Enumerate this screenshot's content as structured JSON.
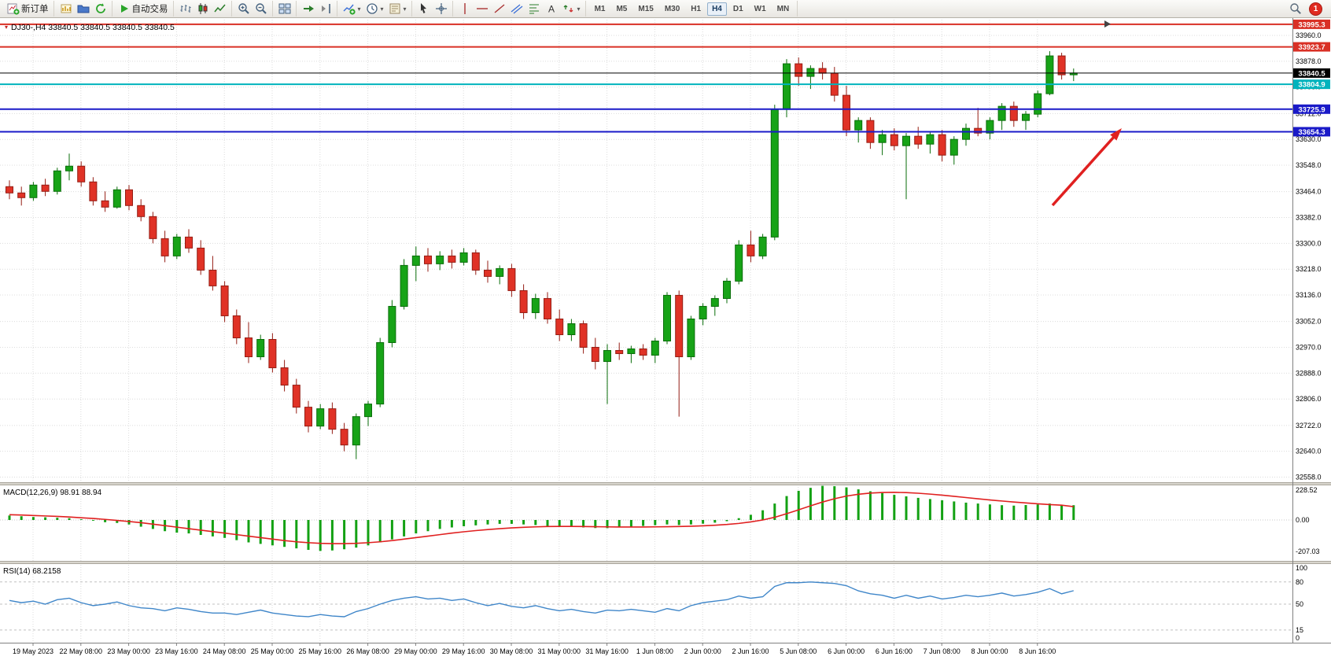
{
  "toolbar": {
    "groups": [
      {
        "items": [
          {
            "name": "new-order-button",
            "icon": "new-order-icon",
            "label": "新订单"
          }
        ]
      },
      {
        "items": [
          {
            "name": "new-chart-button",
            "icon": "new-chart-icon"
          },
          {
            "name": "chart-profiles-button",
            "icon": "chart-profiles-icon"
          },
          {
            "name": "auto-refresh-button",
            "icon": "auto-refresh-icon"
          }
        ]
      },
      {
        "items": [
          {
            "name": "autotrading-button",
            "icon": "autotrading-icon",
            "label": "自动交易"
          }
        ]
      },
      {
        "items": [
          {
            "name": "bar-chart-button",
            "icon": "bar-chart-icon"
          },
          {
            "name": "candlestick-chart-button",
            "icon": "candlestick-chart-icon"
          },
          {
            "name": "line-chart-button",
            "icon": "line-chart-icon"
          }
        ]
      },
      {
        "items": [
          {
            "name": "zoom-in-button",
            "icon": "zoom-in-icon"
          },
          {
            "name": "zoom-out-button",
            "icon": "zoom-out-icon"
          }
        ]
      },
      {
        "items": [
          {
            "name": "tile-windows-button",
            "icon": "tile-windows-icon"
          }
        ]
      },
      {
        "items": [
          {
            "name": "auto-scroll-button",
            "icon": "auto-scroll-icon"
          },
          {
            "name": "chart-shift-button",
            "icon": "chart-shift-icon"
          }
        ]
      },
      {
        "items": [
          {
            "name": "indicators-button",
            "icon": "indicators-icon",
            "dropdown": true
          },
          {
            "name": "periods-button",
            "icon": "periods-icon",
            "dropdown": true
          },
          {
            "name": "templates-button",
            "icon": "templates-icon",
            "dropdown": true
          }
        ]
      },
      {
        "items": [
          {
            "name": "cursor-button",
            "icon": "cursor-icon"
          },
          {
            "name": "crosshair-button",
            "icon": "crosshair-icon"
          }
        ]
      },
      {
        "items": [
          {
            "name": "vertical-line-button",
            "icon": "vertical-line-icon"
          },
          {
            "name": "horizontal-line-button",
            "icon": "horizontal-line-icon"
          },
          {
            "name": "trendline-button",
            "icon": "trendline-icon"
          },
          {
            "name": "channel-button",
            "icon": "channel-icon"
          },
          {
            "name": "fibonacci-button",
            "icon": "fibonacci-icon"
          },
          {
            "name": "text-button",
            "icon": "text-icon"
          },
          {
            "name": "arrows-button",
            "icon": "arrows-icon",
            "dropdown": true
          }
        ]
      }
    ],
    "timeframes": [
      "M1",
      "M5",
      "M15",
      "M30",
      "H1",
      "H4",
      "D1",
      "W1",
      "MN"
    ],
    "active_timeframe": "H4",
    "notification_count": "1"
  },
  "chart": {
    "title": "DJ30-,H4  33840.5 33840.5 33840.5 33840.5",
    "symbol_period": "DJ30-,H4"
  },
  "chart_data": {
    "type": "candlestick",
    "symbol": "DJ30-",
    "period": "H4",
    "price_ticks": [
      "33960.0",
      "33878.0",
      "33796.0",
      "33712.0",
      "33630.0",
      "33548.0",
      "33464.0",
      "33382.0",
      "33300.0",
      "33218.0",
      "33136.0",
      "33052.0",
      "32970.0",
      "32888.0",
      "32806.0",
      "32722.0",
      "32640.0",
      "32558.0"
    ],
    "price_lines": [
      {
        "name": "resistance-line-1",
        "label": "33995.3",
        "price": 33995.3,
        "color": "#d93025",
        "width": 2
      },
      {
        "name": "resistance-line-2",
        "label": "33923.7",
        "price": 33923.7,
        "color": "#d93025",
        "width": 2
      },
      {
        "name": "bid-price-line",
        "label": "33840.5",
        "price": 33840.5,
        "color": "#000000",
        "width": 1
      },
      {
        "name": "cyan-level-line",
        "label": "33804.9",
        "price": 33804.9,
        "color": "#00b3bd",
        "width": 2
      },
      {
        "name": "support-line-1",
        "label": "33725.9",
        "price": 33725.9,
        "color": "#1a1ac8",
        "width": 2
      },
      {
        "name": "support-line-2",
        "label": "33654.3",
        "price": 33654.3,
        "color": "#1a1ac8",
        "width": 2
      }
    ],
    "time_labels": [
      "19 May 2023",
      "22 May 08:00",
      "23 May 00:00",
      "23 May 16:00",
      "24 May 08:00",
      "25 May 00:00",
      "25 May 16:00",
      "26 May 08:00",
      "29 May 00:00",
      "29 May 16:00",
      "30 May 08:00",
      "31 May 00:00",
      "31 May 16:00",
      "1 Jun 08:00",
      "2 Jun 00:00",
      "2 Jun 16:00",
      "5 Jun 08:00",
      "6 Jun 00:00",
      "6 Jun 16:00",
      "7 Jun 08:00",
      "8 Jun 00:00",
      "8 Jun 16:00"
    ],
    "candles": [
      [
        33480,
        33500,
        33440,
        33460
      ],
      [
        33460,
        33480,
        33420,
        33445
      ],
      [
        33445,
        33495,
        33435,
        33485
      ],
      [
        33485,
        33505,
        33450,
        33465
      ],
      [
        33465,
        33540,
        33455,
        33530
      ],
      [
        33530,
        33585,
        33500,
        33545
      ],
      [
        33545,
        33560,
        33480,
        33495
      ],
      [
        33495,
        33510,
        33420,
        33435
      ],
      [
        33435,
        33465,
        33400,
        33415
      ],
      [
        33415,
        33480,
        33410,
        33470
      ],
      [
        33470,
        33485,
        33405,
        33420
      ],
      [
        33420,
        33440,
        33370,
        33385
      ],
      [
        33385,
        33400,
        33300,
        33315
      ],
      [
        33315,
        33340,
        33240,
        33260
      ],
      [
        33260,
        33330,
        33250,
        33320
      ],
      [
        33320,
        33345,
        33270,
        33285
      ],
      [
        33285,
        33310,
        33200,
        33215
      ],
      [
        33215,
        33260,
        33150,
        33165
      ],
      [
        33165,
        33180,
        33050,
        33070
      ],
      [
        33070,
        33090,
        32980,
        33000
      ],
      [
        33000,
        33050,
        32920,
        32940
      ],
      [
        32940,
        33010,
        32930,
        32995
      ],
      [
        32995,
        33015,
        32890,
        32905
      ],
      [
        32905,
        32930,
        32830,
        32850
      ],
      [
        32850,
        32870,
        32760,
        32780
      ],
      [
        32780,
        32800,
        32700,
        32720
      ],
      [
        32720,
        32790,
        32710,
        32775
      ],
      [
        32775,
        32795,
        32695,
        32710
      ],
      [
        32710,
        32730,
        32640,
        32660
      ],
      [
        32660,
        32760,
        32615,
        32750
      ],
      [
        32750,
        32800,
        32720,
        32790
      ],
      [
        32790,
        33000,
        32780,
        32985
      ],
      [
        32985,
        33120,
        32970,
        33100
      ],
      [
        33100,
        33250,
        33090,
        33230
      ],
      [
        33230,
        33290,
        33180,
        33260
      ],
      [
        33260,
        33285,
        33210,
        33235
      ],
      [
        33235,
        33275,
        33215,
        33260
      ],
      [
        33260,
        33280,
        33220,
        33240
      ],
      [
        33240,
        33285,
        33230,
        33270
      ],
      [
        33270,
        33280,
        33200,
        33215
      ],
      [
        33215,
        33245,
        33175,
        33195
      ],
      [
        33195,
        33230,
        33170,
        33220
      ],
      [
        33220,
        33235,
        33130,
        33150
      ],
      [
        33150,
        33170,
        33060,
        33080
      ],
      [
        33080,
        33140,
        33060,
        33125
      ],
      [
        33125,
        33145,
        33045,
        33060
      ],
      [
        33060,
        33090,
        32990,
        33010
      ],
      [
        33010,
        33060,
        32990,
        33045
      ],
      [
        33045,
        33055,
        32950,
        32970
      ],
      [
        32970,
        33000,
        32900,
        32925
      ],
      [
        32925,
        32980,
        32790,
        32960
      ],
      [
        32960,
        32985,
        32930,
        32950
      ],
      [
        32950,
        32975,
        32920,
        32965
      ],
      [
        32965,
        32980,
        32930,
        32945
      ],
      [
        32945,
        33000,
        32920,
        32990
      ],
      [
        32990,
        33145,
        32980,
        33135
      ],
      [
        33135,
        33150,
        32750,
        32940
      ],
      [
        32940,
        33070,
        32930,
        33060
      ],
      [
        33060,
        33110,
        33040,
        33100
      ],
      [
        33100,
        33135,
        33070,
        33125
      ],
      [
        33125,
        33190,
        33110,
        33180
      ],
      [
        33180,
        33310,
        33170,
        33295
      ],
      [
        33295,
        33340,
        33240,
        33260
      ],
      [
        33260,
        33330,
        33250,
        33320
      ],
      [
        33320,
        33740,
        33310,
        33725
      ],
      [
        33725,
        33885,
        33700,
        33870
      ],
      [
        33870,
        33890,
        33800,
        33830
      ],
      [
        33830,
        33865,
        33790,
        33855
      ],
      [
        33855,
        33875,
        33820,
        33840
      ],
      [
        33840,
        33860,
        33750,
        33770
      ],
      [
        33770,
        33800,
        33640,
        33660
      ],
      [
        33660,
        33700,
        33620,
        33690
      ],
      [
        33690,
        33700,
        33600,
        33620
      ],
      [
        33620,
        33660,
        33580,
        33645
      ],
      [
        33645,
        33665,
        33595,
        33610
      ],
      [
        33610,
        33650,
        33440,
        33640
      ],
      [
        33640,
        33670,
        33600,
        33615
      ],
      [
        33615,
        33655,
        33585,
        33645
      ],
      [
        33645,
        33660,
        33560,
        33580
      ],
      [
        33580,
        33640,
        33550,
        33630
      ],
      [
        33630,
        33680,
        33610,
        33665
      ],
      [
        33665,
        33730,
        33640,
        33650
      ],
      [
        33650,
        33700,
        33630,
        33690
      ],
      [
        33690,
        33745,
        33660,
        33735
      ],
      [
        33735,
        33750,
        33670,
        33690
      ],
      [
        33690,
        33720,
        33660,
        33710
      ],
      [
        33710,
        33785,
        33700,
        33775
      ],
      [
        33775,
        33910,
        33770,
        33895
      ],
      [
        33895,
        33905,
        33820,
        33835
      ],
      [
        33835,
        33855,
        33815,
        33840.5
      ]
    ],
    "indicators": {
      "macd": {
        "label": "MACD(12,26,9) 98.91 88.94",
        "main_value": "98.91",
        "signal_value": "88.94",
        "axis": [
          "228.52",
          "0.00",
          "-207.03"
        ],
        "histogram": [
          30,
          25,
          20,
          18,
          15,
          12,
          5,
          -5,
          -15,
          -20,
          -30,
          -45,
          -60,
          -75,
          -85,
          -90,
          -100,
          -110,
          -120,
          -135,
          -150,
          -160,
          -170,
          -180,
          -190,
          -200,
          -207.03,
          -204,
          -196,
          -185,
          -170,
          -150,
          -130,
          -110,
          -90,
          -75,
          -60,
          -50,
          -42,
          -36,
          -30,
          -26,
          -26,
          -30,
          -34,
          -40,
          -44,
          -46,
          -50,
          -54,
          -55,
          -50,
          -46,
          -40,
          -35,
          -30,
          -34,
          -30,
          -25,
          -18,
          -8,
          12,
          35,
          65,
          110,
          160,
          195,
          215,
          228.52,
          226,
          218,
          205,
          192,
          180,
          168,
          158,
          148,
          140,
          132,
          124,
          116,
          110,
          104,
          99,
          96,
          100,
          104,
          110,
          102,
          98.91
        ],
        "signal": [
          35,
          33,
          30,
          27,
          24,
          20,
          15,
          10,
          4,
          -3,
          -10,
          -18,
          -28,
          -38,
          -48,
          -58,
          -68,
          -78,
          -88,
          -98,
          -108,
          -118,
          -128,
          -138,
          -146,
          -152,
          -156,
          -158,
          -158,
          -156,
          -152,
          -146,
          -138,
          -128,
          -118,
          -108,
          -98,
          -88,
          -79,
          -71,
          -64,
          -58,
          -53,
          -49,
          -46,
          -44,
          -43,
          -43,
          -44,
          -45,
          -46,
          -47,
          -47,
          -47,
          -46,
          -45,
          -44,
          -42,
          -39,
          -35,
          -30,
          -23,
          -13,
          0,
          18,
          42,
          68,
          95,
          120,
          142,
          160,
          172,
          180,
          184,
          185,
          183,
          179,
          173,
          166,
          158,
          150,
          142,
          134,
          127,
          120,
          114,
          108,
          103,
          99,
          88.94
        ]
      },
      "rsi": {
        "label": "RSI(14) 68.2158",
        "value": "68.2158",
        "axis": [
          "100",
          "80",
          "50",
          "15",
          "0"
        ],
        "levels": [
          80,
          50,
          15
        ],
        "values": [
          55,
          52,
          54,
          50,
          56,
          58,
          52,
          48,
          50,
          53,
          48,
          45,
          44,
          41,
          45,
          43,
          40,
          38,
          38,
          36,
          39,
          42,
          38,
          36,
          34,
          33,
          36,
          34,
          33,
          40,
          44,
          50,
          55,
          58,
          60,
          57,
          58,
          55,
          57,
          52,
          48,
          51,
          47,
          45,
          48,
          44,
          41,
          43,
          40,
          38,
          42,
          41,
          43,
          41,
          39,
          44,
          41,
          48,
          52,
          54,
          56,
          61,
          58,
          60,
          74,
          79,
          79,
          80,
          79,
          78,
          75,
          68,
          64,
          62,
          58,
          62,
          58,
          61,
          57,
          59,
          62,
          60,
          62,
          65,
          61,
          63,
          66,
          71,
          64,
          68.2158
        ]
      }
    },
    "annotations": [
      {
        "type": "arrow",
        "name": "trend-arrow",
        "color": "#e02020"
      }
    ]
  },
  "colors": {
    "bull": "#17a317",
    "bull_border": "#0a6e0a",
    "bear": "#e03226",
    "bear_border": "#951d14",
    "grid": "#dcdcdc",
    "macd_hist": "#13a113",
    "macd_signal": "#e02020",
    "rsi_line": "#3f86c9"
  }
}
